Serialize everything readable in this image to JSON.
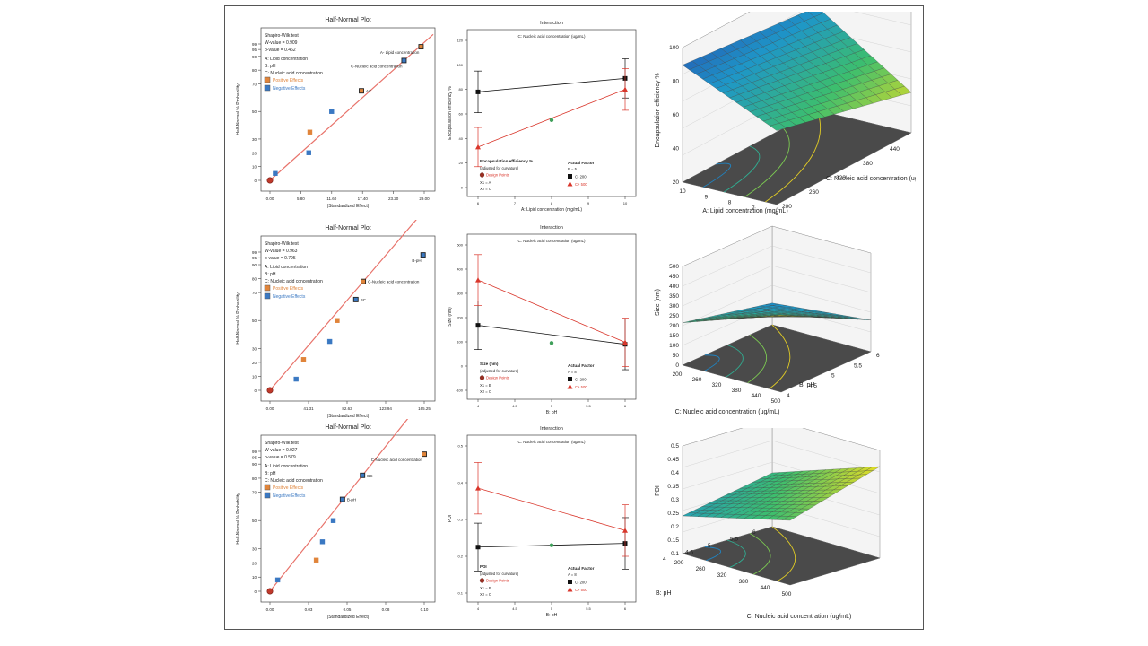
{
  "colors": {
    "fit_line": "#e8736b",
    "positive": "#e0843a",
    "negative": "#3a78c2",
    "series_low": "#111111",
    "series_high": "#d9362b",
    "center_point": "#3f9f5a"
  },
  "halfnormal": [
    {
      "title": "Half-Normal Plot",
      "xlabel": "|Standardized Effect|",
      "ylabel": "Half-Normal % Probability",
      "stats": [
        "Shapiro-Wilk test",
        "W-value = 0.909",
        "p-value = 0.462",
        "A: Lipid concentration",
        "B: pH",
        "C: Nucleic acid concentration"
      ],
      "legend_pos": "Positive Effects",
      "legend_neg": "Negative Effects",
      "xticks": [
        "0.00",
        "5.80",
        "11.60",
        "17.40",
        "23.20",
        "29.00"
      ],
      "yticks": [
        "0",
        "10",
        "20",
        "30",
        "50",
        "70",
        "80",
        "90",
        "95",
        "99"
      ],
      "labels": [
        "A- Lipid concentration",
        "C-Nucleic acid concentration",
        "AC"
      ]
    },
    {
      "title": "Half-Normal Plot",
      "xlabel": "|Standardized Effect|",
      "ylabel": "Half-Normal % Probability",
      "stats": [
        "Shapiro-Wilk test",
        "W-value = 0.963",
        "p-value = 0.795",
        "A: Lipid concentration",
        "B: pH",
        "C: Nucleic acid concentration"
      ],
      "legend_pos": "Positive Effects",
      "legend_neg": "Negative Effects",
      "xticks": [
        "0.00",
        "41.31",
        "82.63",
        "123.94",
        "165.25"
      ],
      "yticks": [
        "0",
        "10",
        "20",
        "30",
        "50",
        "70",
        "80",
        "90",
        "95",
        "99"
      ],
      "labels": [
        "B-pH",
        "C-Nucleic acid concentration",
        "BC"
      ]
    },
    {
      "title": "Half-Normal Plot",
      "xlabel": "|Standardized Effect|",
      "ylabel": "Half-Normal % Probability",
      "stats": [
        "Shapiro-Wilk test",
        "W-value = 0.927",
        "p-value = 0.579",
        "A: Lipid concentration",
        "B: pH",
        "C: Nucleic acid concentration"
      ],
      "legend_pos": "Positive Effects",
      "legend_neg": "Negative Effects",
      "xticks": [
        "0.00",
        "0.03",
        "0.05",
        "0.08",
        "0.10"
      ],
      "yticks": [
        "0",
        "10",
        "20",
        "30",
        "50",
        "70",
        "80",
        "90",
        "95",
        "99"
      ],
      "labels": [
        "C-Nucleic acid concentration",
        "BC",
        "B-pH"
      ]
    }
  ],
  "interaction": [
    {
      "title": "Interaction",
      "subtitle": "C: Nucleic acid concentration (ug/mL)",
      "xlabel": "A: Lipid concentration (mg/mL)",
      "ylabel": "Encapsulation efficiency %",
      "xticks": [
        "6",
        "7",
        "8",
        "9",
        "10"
      ],
      "yticks": [
        "0",
        "20",
        "40",
        "60",
        "80",
        "100",
        "120"
      ],
      "legend": [
        "Encapsulation efficiency %",
        "(adjusted for curvature)",
        "Design Points",
        "X1 = A",
        "X2 = C"
      ],
      "factor": [
        "Actual Factor",
        "B = 5",
        "C- 200",
        "C+ 500"
      ]
    },
    {
      "title": "Interaction",
      "subtitle": "C: Nucleic acid concentration (ug/mL)",
      "xlabel": "B: pH",
      "ylabel": "Size (nm)",
      "xticks": [
        "4",
        "4.5",
        "5",
        "5.5",
        "6"
      ],
      "yticks": [
        "-100",
        "0",
        "100",
        "200",
        "300",
        "400",
        "500"
      ],
      "legend": [
        "Size (nm)",
        "(adjusted for curvature)",
        "Design Points",
        "X1 = B",
        "X2 = C"
      ],
      "factor": [
        "Actual Factor",
        "A = 8",
        "C- 200",
        "C+ 500"
      ]
    },
    {
      "title": "Interaction",
      "subtitle": "C: Nucleic acid concentration (ug/mL)",
      "xlabel": "B: pH",
      "ylabel": "PDI",
      "xticks": [
        "4",
        "4.5",
        "5",
        "5.5",
        "6"
      ],
      "yticks": [
        "0.1",
        "0.2",
        "0.3",
        "0.4",
        "0.5"
      ],
      "legend": [
        "PDI",
        "(adjusted for curvature)",
        "Design Points",
        "X1 = B",
        "X2 = C"
      ],
      "factor": [
        "Actual Factor",
        "A = 8",
        "C- 200",
        "C+ 500"
      ]
    }
  ],
  "surface": [
    {
      "zlabel": "Encapsulation efficiency %",
      "zticks": [
        "20",
        "40",
        "60",
        "80",
        "100"
      ],
      "xlabel": "A: Lipid concentration (mg/mL)",
      "xticks": [
        "10",
        "9",
        "8",
        "7",
        "6"
      ],
      "ylabel": "C: Nucleic acid concentration (ug/mL)",
      "yticks": [
        "200",
        "260",
        "320",
        "380",
        "440",
        "500"
      ]
    },
    {
      "zlabel": "Size (nm)",
      "zticks": [
        "0",
        "50",
        "100",
        "150",
        "200",
        "250",
        "300",
        "350",
        "400",
        "450",
        "500"
      ],
      "xlabel": "C: Nucleic acid concentration (ug/mL)",
      "xticks": [
        "200",
        "260",
        "320",
        "380",
        "440",
        "500"
      ],
      "ylabel": "B: pH",
      "yticks": [
        "4",
        "4.5",
        "5",
        "5.5",
        "6"
      ]
    },
    {
      "zlabel": "PDI",
      "zticks": [
        "0.1",
        "0.15",
        "0.2",
        "0.25",
        "0.3",
        "0.35",
        "0.4",
        "0.45",
        "0.5"
      ],
      "xlabel": "C: Nucleic acid concentration (ug/mL)",
      "xticks": [
        "200",
        "260",
        "320",
        "380",
        "440",
        "500"
      ],
      "ylabel": "B: pH",
      "yticks": [
        "4",
        "4.5",
        "5",
        "5.5",
        "6"
      ]
    }
  ],
  "chart_data": [
    {
      "type": "scatter",
      "title": "Half-Normal Plot",
      "xlabel": "|Standardized Effect|",
      "ylabel": "Half-Normal % Probability",
      "xlim": [
        0,
        29
      ],
      "ylim": [
        0,
        99
      ],
      "points": [
        {
          "x": 0.0,
          "y": 0,
          "sign": "center"
        },
        {
          "x": 1.0,
          "y": 5,
          "sign": "neg"
        },
        {
          "x": 7.3,
          "y": 20,
          "sign": "neg"
        },
        {
          "x": 7.5,
          "y": 35,
          "sign": "pos"
        },
        {
          "x": 11.6,
          "y": 50,
          "sign": "neg"
        },
        {
          "x": 17.2,
          "y": 65,
          "sign": "pos",
          "label": "AC"
        },
        {
          "x": 25.2,
          "y": 87,
          "sign": "neg",
          "label": "C-Nucleic acid concentration"
        },
        {
          "x": 28.4,
          "y": 97,
          "sign": "pos",
          "label": "A- Lipid concentration"
        }
      ]
    },
    {
      "type": "line",
      "title": "Interaction",
      "xlabel": "A: Lipid concentration (mg/mL)",
      "ylabel": "Encapsulation efficiency %",
      "xlim": [
        6,
        10
      ],
      "ylim": [
        0,
        120
      ],
      "series": [
        {
          "name": "C- 200",
          "x": [
            6,
            10
          ],
          "values": [
            78,
            89
          ],
          "err": [
            17,
            16
          ]
        },
        {
          "name": "C+ 500",
          "x": [
            6,
            10
          ],
          "values": [
            33,
            80
          ],
          "err": [
            16,
            17
          ]
        }
      ],
      "center_point": {
        "x": 8,
        "y": 55
      }
    },
    {
      "type": "surface",
      "zlabel": "Encapsulation efficiency %",
      "xlabel": "A: Lipid concentration (mg/mL)",
      "ylabel": "C: Nucleic acid concentration (ug/mL)",
      "zlim": [
        20,
        100
      ]
    },
    {
      "type": "scatter",
      "title": "Half-Normal Plot",
      "xlabel": "|Standardized Effect|",
      "ylabel": "Half-Normal % Probability",
      "xlim": [
        0,
        165.25
      ],
      "ylim": [
        0,
        99
      ],
      "points": [
        {
          "x": 0.0,
          "y": 0,
          "sign": "center"
        },
        {
          "x": 28,
          "y": 8,
          "sign": "neg"
        },
        {
          "x": 36,
          "y": 22,
          "sign": "pos"
        },
        {
          "x": 64,
          "y": 35,
          "sign": "neg"
        },
        {
          "x": 72,
          "y": 50,
          "sign": "pos"
        },
        {
          "x": 92,
          "y": 65,
          "sign": "neg",
          "label": "BC"
        },
        {
          "x": 100,
          "y": 78,
          "sign": "pos",
          "label": "C-Nucleic acid concentration"
        },
        {
          "x": 164,
          "y": 97,
          "sign": "neg",
          "label": "B-pH"
        }
      ]
    },
    {
      "type": "line",
      "title": "Interaction",
      "xlabel": "B: pH",
      "ylabel": "Size (nm)",
      "xlim": [
        4,
        6
      ],
      "ylim": [
        -100,
        500
      ],
      "series": [
        {
          "name": "C- 200",
          "x": [
            4,
            6
          ],
          "values": [
            168,
            90
          ],
          "err": [
            100,
            105
          ]
        },
        {
          "name": "C+ 500",
          "x": [
            4,
            6
          ],
          "values": [
            355,
            98
          ],
          "err": [
            105,
            100
          ]
        }
      ],
      "center_point": {
        "x": 5,
        "y": 95
      }
    },
    {
      "type": "surface",
      "zlabel": "Size (nm)",
      "xlabel": "C: Nucleic acid concentration (ug/mL)",
      "ylabel": "B: pH",
      "zlim": [
        0,
        500
      ]
    },
    {
      "type": "scatter",
      "title": "Half-Normal Plot",
      "xlabel": "|Standardized Effect|",
      "ylabel": "Half-Normal % Probability",
      "xlim": [
        0,
        0.1
      ],
      "ylim": [
        0,
        99
      ],
      "points": [
        {
          "x": 0.0,
          "y": 0,
          "sign": "center"
        },
        {
          "x": 0.005,
          "y": 8,
          "sign": "neg"
        },
        {
          "x": 0.03,
          "y": 22,
          "sign": "pos"
        },
        {
          "x": 0.034,
          "y": 35,
          "sign": "neg"
        },
        {
          "x": 0.041,
          "y": 50,
          "sign": "neg"
        },
        {
          "x": 0.047,
          "y": 65,
          "sign": "neg",
          "label": "B-pH"
        },
        {
          "x": 0.06,
          "y": 82,
          "sign": "neg",
          "label": "BC"
        },
        {
          "x": 0.1,
          "y": 97,
          "sign": "pos",
          "label": "C-Nucleic acid concentration"
        }
      ]
    },
    {
      "type": "line",
      "title": "Interaction",
      "xlabel": "B: pH",
      "ylabel": "PDI",
      "xlim": [
        4,
        6
      ],
      "ylim": [
        0.1,
        0.5
      ],
      "series": [
        {
          "name": "C- 200",
          "x": [
            4,
            6
          ],
          "values": [
            0.225,
            0.235
          ],
          "err": [
            0.065,
            0.07
          ]
        },
        {
          "name": "C+ 500",
          "x": [
            4,
            6
          ],
          "values": [
            0.385,
            0.27
          ],
          "err": [
            0.07,
            0.07
          ]
        }
      ],
      "center_point": {
        "x": 5,
        "y": 0.23
      }
    },
    {
      "type": "surface",
      "zlabel": "PDI",
      "xlabel": "C: Nucleic acid concentration (ug/mL)",
      "ylabel": "B: pH",
      "zlim": [
        0.1,
        0.5
      ]
    }
  ]
}
